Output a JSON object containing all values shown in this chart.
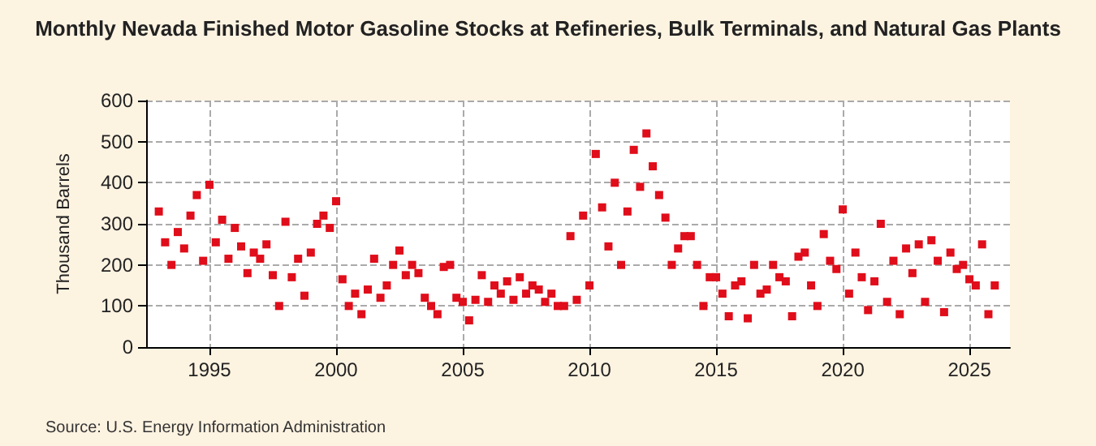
{
  "chart_data": {
    "type": "scatter",
    "title": "Monthly Nevada Finished Motor Gasoline Stocks at Refineries, Bulk Terminals, and Natural Gas Plants",
    "ylabel": "Thousand Barrels",
    "annotations": [
      "Source: U.S. Energy Information Administration"
    ],
    "x": [
      1993.0,
      1993.25,
      1993.5,
      1993.75,
      1994.0,
      1994.25,
      1994.5,
      1994.75,
      1995.0,
      1995.25,
      1995.5,
      1995.75,
      1996.0,
      1996.25,
      1996.5,
      1996.75,
      1997.0,
      1997.25,
      1997.5,
      1997.75,
      1998.0,
      1998.25,
      1998.5,
      1998.75,
      1999.0,
      1999.25,
      1999.5,
      1999.75,
      2000.0,
      2000.25,
      2000.5,
      2000.75,
      2001.0,
      2001.25,
      2001.5,
      2001.75,
      2002.0,
      2002.25,
      2002.5,
      2002.75,
      2003.0,
      2003.25,
      2003.5,
      2003.75,
      2004.0,
      2004.25,
      2004.5,
      2004.75,
      2005.0,
      2005.25,
      2005.5,
      2005.75,
      2006.0,
      2006.25,
      2006.5,
      2006.75,
      2007.0,
      2007.25,
      2007.5,
      2007.75,
      2008.0,
      2008.25,
      2008.5,
      2008.75,
      2009.0,
      2009.25,
      2009.5,
      2009.75,
      2010.0,
      2010.25,
      2010.5,
      2010.75,
      2011.0,
      2011.25,
      2011.5,
      2011.75,
      2012.0,
      2012.25,
      2012.5,
      2012.75,
      2013.0,
      2013.25,
      2013.5,
      2013.75,
      2014.0,
      2014.25,
      2014.5,
      2014.75,
      2015.0,
      2015.25,
      2015.5,
      2015.75,
      2016.0,
      2016.25,
      2016.5,
      2016.75,
      2017.0,
      2017.25,
      2017.5,
      2017.75,
      2018.0,
      2018.25,
      2018.5,
      2018.75,
      2019.0,
      2019.25,
      2019.5,
      2019.75,
      2020.0,
      2020.25,
      2020.5,
      2020.75,
      2021.0,
      2021.25,
      2021.5,
      2021.75,
      2022.0,
      2022.25,
      2022.5,
      2022.75,
      2023.0,
      2023.25,
      2023.5,
      2023.75,
      2024.0,
      2024.25,
      2024.5,
      2024.75,
      2025.0,
      2025.25,
      2025.5,
      2025.75,
      2026.0
    ],
    "series": [
      {
        "color": "#e00d1a",
        "values": [
          330,
          255,
          200,
          280,
          240,
          320,
          370,
          210,
          395,
          255,
          310,
          215,
          290,
          245,
          180,
          230,
          215,
          250,
          175,
          100,
          305,
          170,
          215,
          125,
          230,
          300,
          320,
          290,
          355,
          165,
          100,
          130,
          80,
          140,
          215,
          120,
          150,
          200,
          235,
          175,
          200,
          180,
          120,
          100,
          80,
          195,
          200,
          120,
          110,
          65,
          115,
          175,
          110,
          150,
          130,
          160,
          115,
          170,
          130,
          150,
          140,
          110,
          130,
          100,
          100,
          270,
          115,
          320,
          150,
          470,
          340,
          245,
          400,
          200,
          330,
          480,
          390,
          520,
          440,
          370,
          315,
          200,
          240,
          270,
          270,
          200,
          100,
          170,
          170,
          130,
          75,
          150,
          160,
          70,
          200,
          130,
          140,
          200,
          170,
          160,
          75,
          220,
          230,
          150,
          100,
          275,
          210,
          190,
          335,
          130,
          230,
          170,
          90,
          160,
          300,
          110,
          210,
          80,
          240,
          180,
          250,
          110,
          260,
          210,
          85,
          230,
          190,
          200,
          165,
          150,
          250,
          80,
          150
        ]
      }
    ],
    "xlim": [
      1992.5,
      2026.6
    ],
    "xticks": [
      1995,
      2000,
      2005,
      2010,
      2015,
      2020,
      2025
    ],
    "ylim": [
      0,
      600
    ],
    "yticks": [
      0,
      100,
      200,
      300,
      400,
      500,
      600
    ],
    "grid": true,
    "marker": "square"
  }
}
